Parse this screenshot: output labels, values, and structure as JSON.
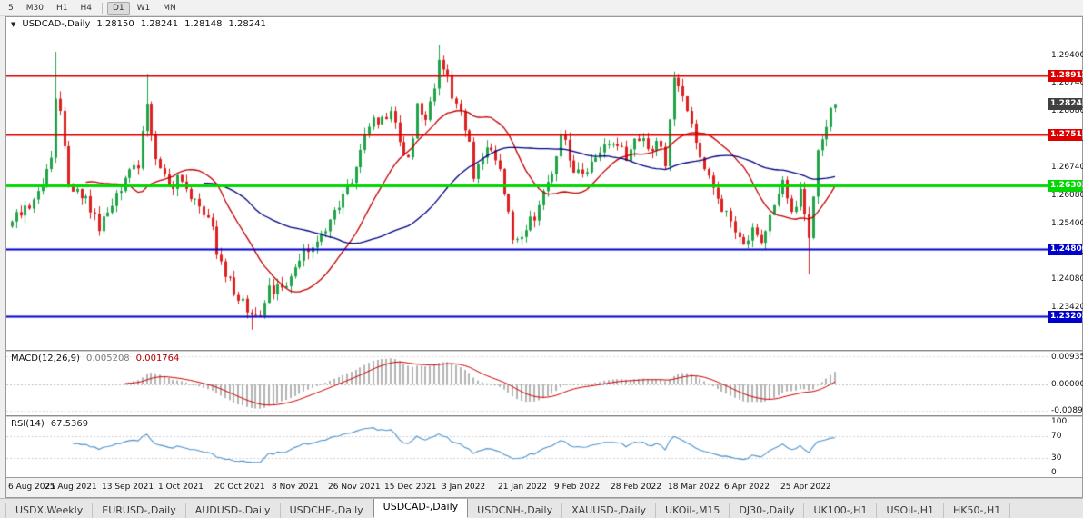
{
  "toolbar": {
    "timeframes": [
      {
        "label": "5",
        "active": false,
        "sep_after": false
      },
      {
        "label": "M30",
        "active": false,
        "sep_after": false
      },
      {
        "label": "H1",
        "active": false,
        "sep_after": false
      },
      {
        "label": "H4",
        "active": false,
        "sep_after": true
      },
      {
        "label": "D1",
        "active": true,
        "sep_after": false
      },
      {
        "label": "W1",
        "active": false,
        "sep_after": false
      },
      {
        "label": "MN",
        "active": false,
        "sep_after": false
      }
    ]
  },
  "chart": {
    "header": {
      "toggle_icon": "▼",
      "symbol": "USDCAD-,Daily",
      "open": "1.28150",
      "high": "1.28241",
      "low": "1.28148",
      "close": "1.28241"
    },
    "y_axis_labels": [
      "1.29400",
      "1.28740",
      "1.28080",
      "1.27400",
      "1.26740",
      "1.26080",
      "1.25400",
      "1.24740",
      "1.24080",
      "1.23420"
    ],
    "price_tag": {
      "label": "1.28241",
      "price": 1.28241,
      "bg": "#404040"
    },
    "colors": {
      "up": "#22a349",
      "down": "#dd2020",
      "bg": "#ffffff",
      "axis_text": "#111111"
    }
  },
  "chart_data": {
    "type": "candlestick",
    "symbol": "USDCAD",
    "timeframe": "Daily",
    "ohlc_current": {
      "open": 1.2815,
      "high": 1.28241,
      "low": 1.28148,
      "close": 1.28241
    },
    "hlines": [
      {
        "label": "1.28912",
        "price": 1.28912,
        "color": "#dd0000",
        "width": 2
      },
      {
        "label": "1.27515",
        "price": 1.27515,
        "color": "#dd0000",
        "width": 2
      },
      {
        "label": "1.26303",
        "price": 1.26303,
        "color": "#00d800",
        "width": 3
      },
      {
        "label": "1.24800",
        "price": 1.248,
        "color": "#0000cc",
        "width": 2
      },
      {
        "label": "1.23203",
        "price": 1.23203,
        "color": "#0000cc",
        "width": 2
      }
    ],
    "main": {
      "candle_count": 190,
      "price_top": 1.303,
      "price_bottom": 1.224,
      "plot_right": 912,
      "seed": 20220425,
      "noise_amp": 0.0016,
      "wick_amp": 0.0018,
      "last_close": 1.28241,
      "close_anchors": [
        [
          0,
          1.2545
        ],
        [
          4,
          1.2585
        ],
        [
          7,
          1.2625
        ],
        [
          9,
          1.27
        ],
        [
          10,
          1.2825
        ],
        [
          11,
          1.2795
        ],
        [
          13,
          1.2625
        ],
        [
          16,
          1.261
        ],
        [
          20,
          1.2535
        ],
        [
          23,
          1.259
        ],
        [
          26,
          1.264
        ],
        [
          29,
          1.268
        ],
        [
          31,
          1.2815
        ],
        [
          33,
          1.269
        ],
        [
          36,
          1.2625
        ],
        [
          39,
          1.2655
        ],
        [
          42,
          1.259
        ],
        [
          45,
          1.2555
        ],
        [
          48,
          1.2445
        ],
        [
          52,
          1.2365
        ],
        [
          55,
          1.2308
        ],
        [
          57,
          1.2335
        ],
        [
          59,
          1.239
        ],
        [
          62,
          1.2385
        ],
        [
          64,
          1.2415
        ],
        [
          66,
          1.246
        ],
        [
          69,
          1.2475
        ],
        [
          72,
          1.253
        ],
        [
          75,
          1.259
        ],
        [
          78,
          1.2645
        ],
        [
          81,
          1.2745
        ],
        [
          83,
          1.2795
        ],
        [
          85,
          1.278
        ],
        [
          87,
          1.2805
        ],
        [
          89,
          1.2735
        ],
        [
          91,
          1.269
        ],
        [
          93,
          1.282
        ],
        [
          95,
          1.279
        ],
        [
          97,
          1.2855
        ],
        [
          98,
          1.2935
        ],
        [
          100,
          1.288
        ],
        [
          103,
          1.2795
        ],
        [
          105,
          1.2745
        ],
        [
          106,
          1.265
        ],
        [
          108,
          1.2705
        ],
        [
          110,
          1.273
        ],
        [
          112,
          1.2655
        ],
        [
          115,
          1.251
        ],
        [
          118,
          1.2525
        ],
        [
          121,
          1.258
        ],
        [
          124,
          1.2665
        ],
        [
          126,
          1.2765
        ],
        [
          129,
          1.2675
        ],
        [
          132,
          1.2655
        ],
        [
          135,
          1.271
        ],
        [
          138,
          1.2735
        ],
        [
          141,
          1.27
        ],
        [
          143,
          1.2755
        ],
        [
          146,
          1.2715
        ],
        [
          148,
          1.274
        ],
        [
          150,
          1.2685
        ],
        [
          152,
          1.2885
        ],
        [
          154,
          1.2835
        ],
        [
          156,
          1.2765
        ],
        [
          159,
          1.2685
        ],
        [
          162,
          1.2605
        ],
        [
          165,
          1.2535
        ],
        [
          168,
          1.2485
        ],
        [
          170,
          1.2515
        ],
        [
          172,
          1.2485
        ],
        [
          174,
          1.2545
        ],
        [
          177,
          1.2635
        ],
        [
          179,
          1.2565
        ],
        [
          181,
          1.2615
        ],
        [
          183,
          1.2495
        ],
        [
          185,
          1.2705
        ],
        [
          186,
          1.2745
        ],
        [
          188,
          1.2805
        ],
        [
          189,
          1.28241
        ]
      ],
      "wick_overrides": [
        {
          "i": 10,
          "h": 1.2948
        },
        {
          "i": 31,
          "h": 1.2896
        },
        {
          "i": 98,
          "h": 1.2964
        },
        {
          "i": 152,
          "h": 1.2901
        },
        {
          "i": 55,
          "l": 1.2288
        },
        {
          "i": 183,
          "l": 1.242
        }
      ],
      "moving_averages": [
        {
          "period": 18,
          "color": "#c00000"
        },
        {
          "period": 45,
          "color": "#000080"
        }
      ]
    },
    "macd": {
      "label": "MACD(12,26,9)",
      "fast": 12,
      "slow": 26,
      "signal": 9,
      "value": "0.005208",
      "signal_value": "0.001764",
      "axis_labels": [
        "0.00935",
        "0.00000",
        "-0.00890"
      ],
      "scale_top": 0.00935,
      "scale_bottom": -0.0089,
      "hist_color": "#b4b4b4",
      "line_color": "#cc0000"
    },
    "rsi": {
      "label": "RSI(14)",
      "period": 14,
      "value": "67.5369",
      "axis_labels": [
        "100",
        "70",
        "30",
        "0"
      ],
      "levels": [
        70,
        30
      ],
      "line_color": "#4f94cd"
    },
    "x_label_step": 13,
    "x_axis_labels": [
      "6 Aug 2021",
      "25 Aug 2021",
      "13 Sep 2021",
      "1 Oct 2021",
      "20 Oct 2021",
      "8 Nov 2021",
      "26 Nov 2021",
      "15 Dec 2021",
      "3 Jan 2022",
      "21 Jan 2022",
      "9 Feb 2022",
      "28 Feb 2022",
      "18 Mar 2022",
      "6 Apr 2022",
      "25 Apr 2022"
    ]
  },
  "tabbar": {
    "tabs": [
      {
        "label": "USDX,Weekly",
        "active": false
      },
      {
        "label": "EURUSD-,Daily",
        "active": false
      },
      {
        "label": "AUDUSD-,Daily",
        "active": false
      },
      {
        "label": "USDCHF-,Daily",
        "active": false
      },
      {
        "label": "USDCAD-,Daily",
        "active": true
      },
      {
        "label": "USDCNH-,Daily",
        "active": false
      },
      {
        "label": "XAUUSD-,Daily",
        "active": false
      },
      {
        "label": "UKOil-,M15",
        "active": false
      },
      {
        "label": "DJ30-,Daily",
        "active": false
      },
      {
        "label": "UK100-,H1",
        "active": false
      },
      {
        "label": "USOil-,H1",
        "active": false
      },
      {
        "label": "HK50-,H1",
        "active": false
      }
    ]
  }
}
